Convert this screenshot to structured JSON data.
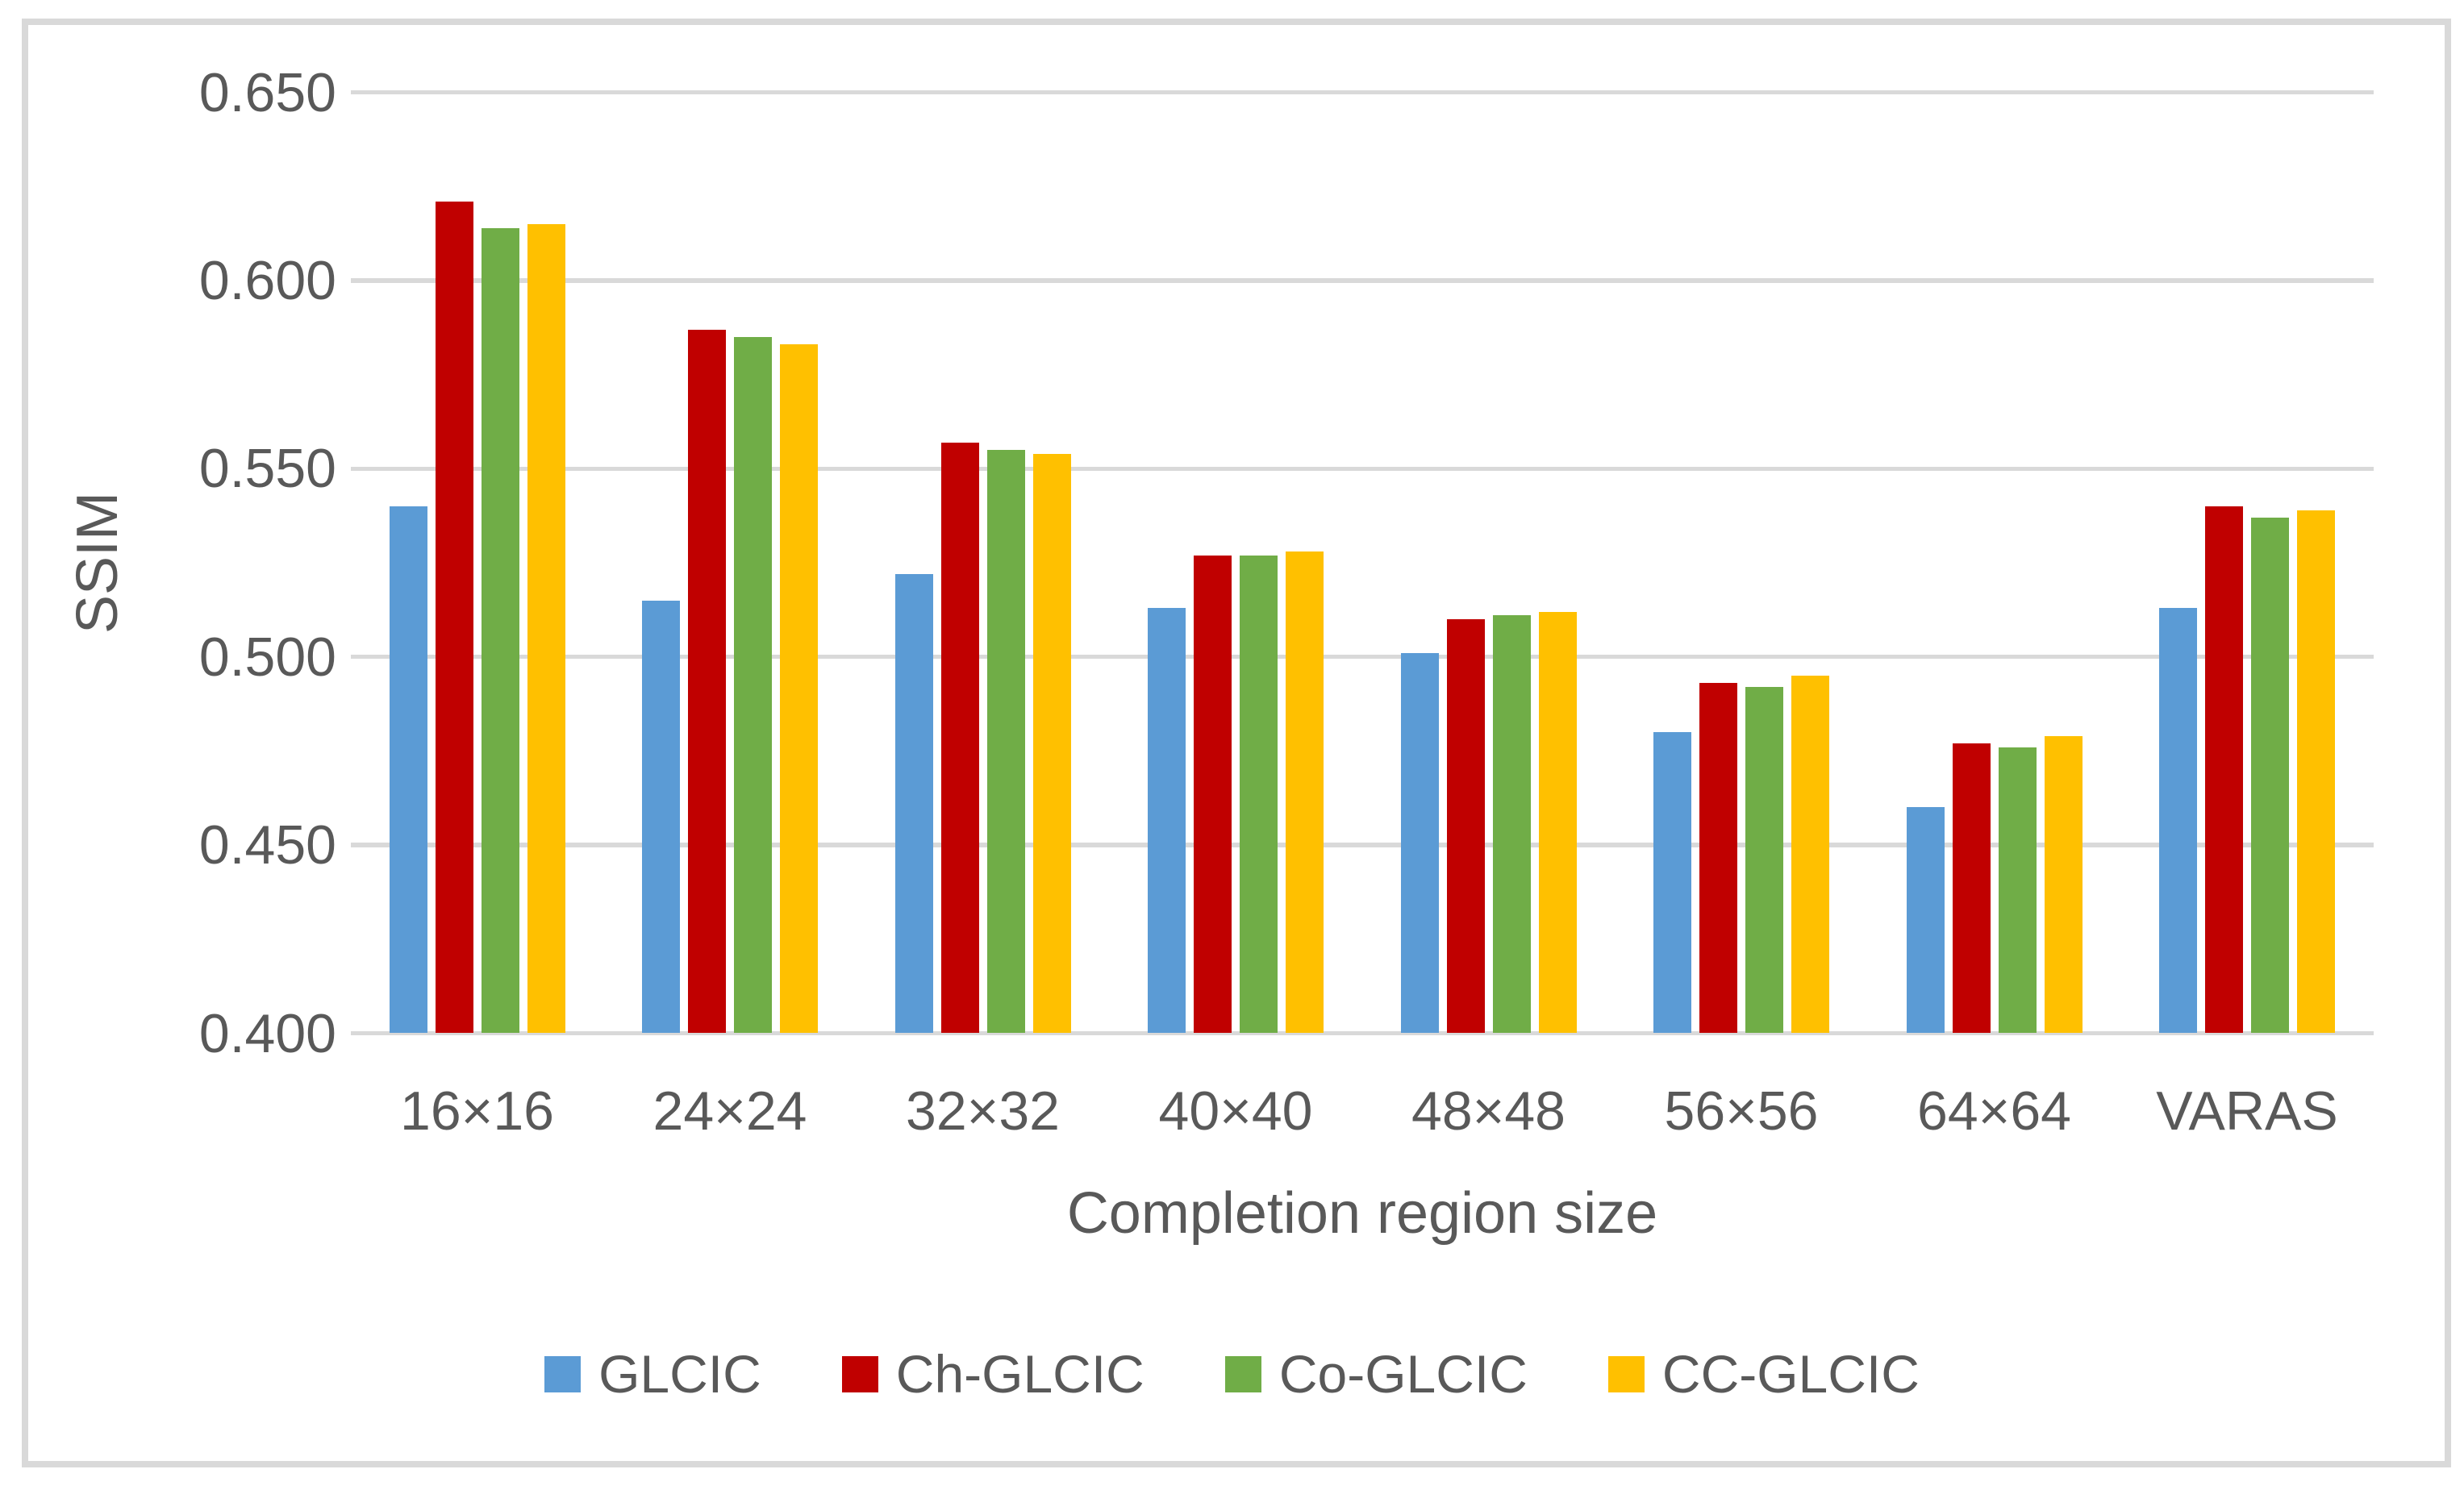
{
  "chart_data": {
    "type": "bar",
    "title": "",
    "xlabel": "Completion region size",
    "ylabel": "SSIM",
    "categories": [
      "16×16",
      "24×24",
      "32×32",
      "40×40",
      "48×48",
      "56×56",
      "64×64",
      "VARAS"
    ],
    "series": [
      {
        "name": "GLCIC",
        "color": "#5B9BD5",
        "values": [
          0.54,
          0.515,
          0.522,
          0.513,
          0.501,
          0.48,
          0.46,
          0.513
        ]
      },
      {
        "name": "Ch-GLCIC",
        "color": "#C00000",
        "values": [
          0.621,
          0.587,
          0.557,
          0.527,
          0.51,
          0.493,
          0.477,
          0.54
        ]
      },
      {
        "name": "Co-GLCIC",
        "color": "#70AD47",
        "values": [
          0.614,
          0.585,
          0.555,
          0.527,
          0.511,
          0.492,
          0.476,
          0.537
        ]
      },
      {
        "name": "CC-GLCIC",
        "color": "#FFC000",
        "values": [
          0.615,
          0.583,
          0.554,
          0.528,
          0.512,
          0.495,
          0.479,
          0.539
        ]
      }
    ],
    "ylim": [
      0.4,
      0.65
    ],
    "ytick_step": 0.05,
    "ytick_labels": [
      "0.400",
      "0.450",
      "0.500",
      "0.550",
      "0.600",
      "0.650"
    ],
    "grid": true,
    "legend_position": "bottom",
    "legend_labels": [
      "GLCIC",
      "Ch-GLCIC",
      "Co-GLCIC",
      "CC-GLCIC"
    ]
  },
  "colors": {
    "background": "#FFFFFF",
    "gridline": "#D9D9D9",
    "frame_border": "#D9D9D9",
    "text": "#595959",
    "series_blue": "#5B9BD5",
    "series_red": "#C00000",
    "series_green": "#70AD47",
    "series_yellow": "#FFC000"
  }
}
